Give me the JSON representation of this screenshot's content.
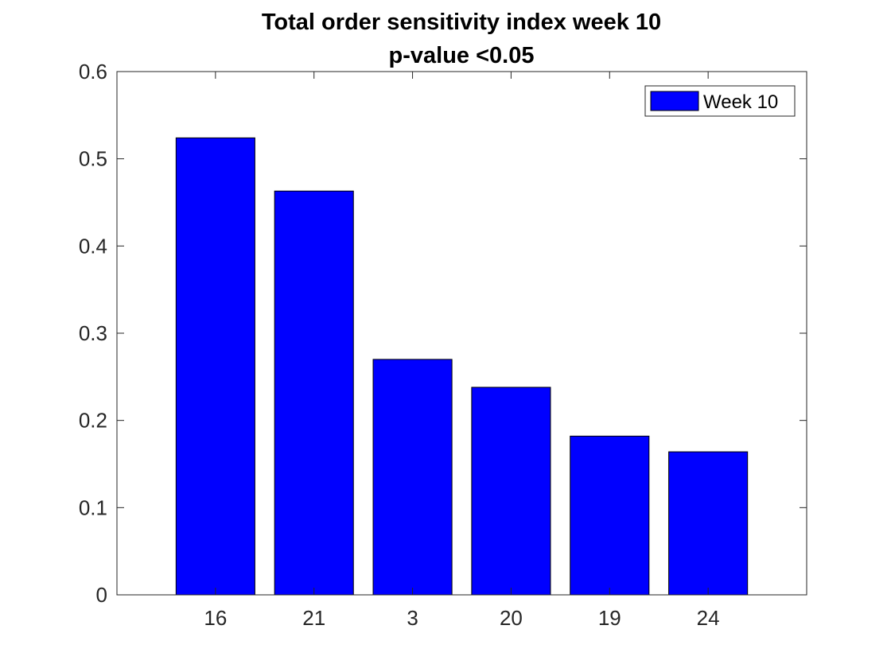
{
  "chart_data": {
    "type": "bar",
    "title": "Total order sensitivity index week 10",
    "subtitle": "p-value <0.05",
    "xlabel": "",
    "ylabel": "",
    "categories": [
      "16",
      "21",
      "3",
      "20",
      "19",
      "24"
    ],
    "series": [
      {
        "name": "Week 10",
        "values": [
          0.524,
          0.463,
          0.27,
          0.238,
          0.182,
          0.164
        ],
        "color": "#0000ff"
      }
    ],
    "ylim": [
      0,
      0.6
    ],
    "yticks": [
      "0",
      "0.1",
      "0.2",
      "0.3",
      "0.4",
      "0.5",
      "0.6"
    ],
    "grid": false,
    "legend_position": "top-right"
  }
}
